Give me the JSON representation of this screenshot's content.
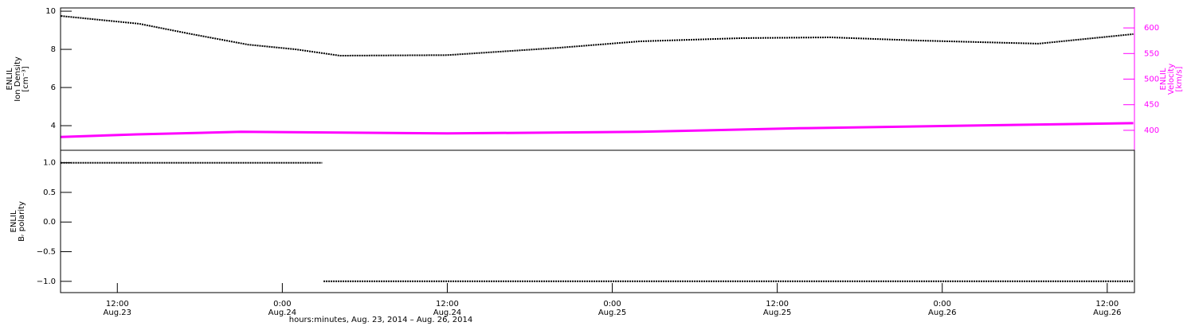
{
  "chart_data": [
    {
      "type": "line",
      "ylabel": [
        "ENLIL",
        "Ion Density",
        "[cm⁻³]"
      ],
      "y2label": [
        "ENLIL",
        "Velocity",
        "[km/s]"
      ],
      "xlim": [
        7.87,
        85.98
      ],
      "ylim": [
        2.71,
        10.17
      ],
      "yticks": [
        4,
        6,
        8,
        10
      ],
      "y2lim": [
        361,
        639
      ],
      "y2ticks": [
        400,
        450,
        500,
        550,
        600
      ],
      "y2color": "#ff00ff",
      "series": [
        {
          "color": "#000000",
          "x": [
            7.9,
            13.6,
            17.4,
            21.5,
            25.0,
            28.2,
            36.0,
            44.1,
            50.0,
            57.5,
            63.9,
            70.3,
            79.0,
            85.9
          ],
          "values": [
            9.75,
            9.34,
            8.8,
            8.25,
            8.0,
            7.67,
            7.7,
            8.08,
            8.42,
            8.59,
            8.63,
            8.46,
            8.3,
            8.8
          ]
        },
        {
          "color": "#ff00ff",
          "axis": "y2",
          "x": [
            7.9,
            13.4,
            21.0,
            36.0,
            50.0,
            61.6,
            73.3,
            85.9
          ],
          "values": [
            387,
            392,
            397,
            394,
            397,
            404,
            409,
            414
          ]
        }
      ]
    },
    {
      "type": "line",
      "ylabel": [
        "ENLIL",
        "Bᵣ polarity"
      ],
      "xlabel": "hours:minutes, Aug. 23, 2014 – Aug. 26, 2014",
      "xlim": [
        7.87,
        85.98
      ],
      "ylim": [
        -1.19,
        1.21
      ],
      "yticks": [
        {
          "value": -1,
          "label": "−1.0"
        },
        {
          "value": -0.5,
          "label": "−0.5"
        },
        {
          "value": 0,
          "label": "0.0"
        },
        {
          "value": 0.5,
          "label": "0.5"
        },
        {
          "value": 1,
          "label": "1.0"
        }
      ],
      "xticks": [
        {
          "value": 12,
          "label": "12:00",
          "date": "Aug.23"
        },
        {
          "value": 24,
          "label": "0:00",
          "date": "Aug.24"
        },
        {
          "value": 36,
          "label": "12:00",
          "date": "Aug.24"
        },
        {
          "value": 48,
          "label": "0:00",
          "date": "Aug.25"
        },
        {
          "value": 60,
          "label": "12:00",
          "date": "Aug.25"
        },
        {
          "value": 72,
          "label": "0:00",
          "date": "Aug.26"
        },
        {
          "value": 84,
          "label": "12:00",
          "date": "Aug.26"
        }
      ],
      "series": [
        {
          "color": "#000000",
          "x": [
            7.9,
            26.9,
            26.95,
            27.0,
            85.9
          ],
          "values": [
            1,
            1,
            null,
            -1,
            -1
          ]
        }
      ]
    }
  ]
}
